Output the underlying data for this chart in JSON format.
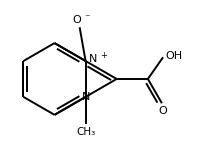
{
  "background_color": "#ffffff",
  "line_color": "#000000",
  "line_width": 1.4,
  "font_size": 7.5,
  "figsize": [
    2.12,
    1.54
  ],
  "dpi": 100,
  "xlim": [
    -1.25,
    1.45
  ],
  "ylim": [
    -0.9,
    0.95
  ]
}
